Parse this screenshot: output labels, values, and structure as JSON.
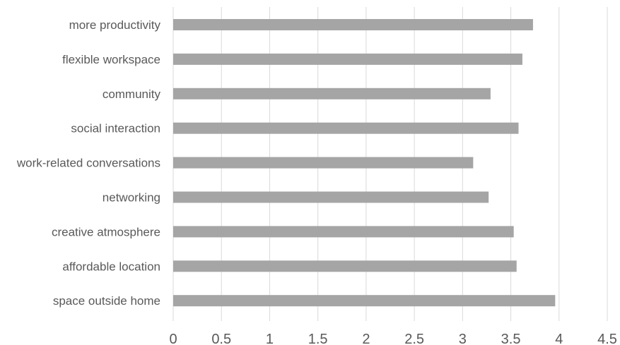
{
  "chart_data": {
    "type": "bar",
    "orientation": "horizontal",
    "categories": [
      "more productivity",
      "flexible workspace",
      "community",
      "social interaction",
      "work-related conversations",
      "networking",
      "creative atmosphere",
      "affordable location",
      "space outside home"
    ],
    "values": [
      3.73,
      3.62,
      3.29,
      3.58,
      3.11,
      3.27,
      3.53,
      3.56,
      3.96
    ],
    "xlim": [
      0,
      4.5
    ],
    "xticks": [
      "0",
      "0.5",
      "1",
      "1.5",
      "2",
      "2.5",
      "3",
      "3.5",
      "4",
      "4.5"
    ],
    "grid": true,
    "bar_color": "#A5A5A5",
    "grid_color": "#D9D9D9",
    "title": "",
    "xlabel": "",
    "ylabel": ""
  }
}
